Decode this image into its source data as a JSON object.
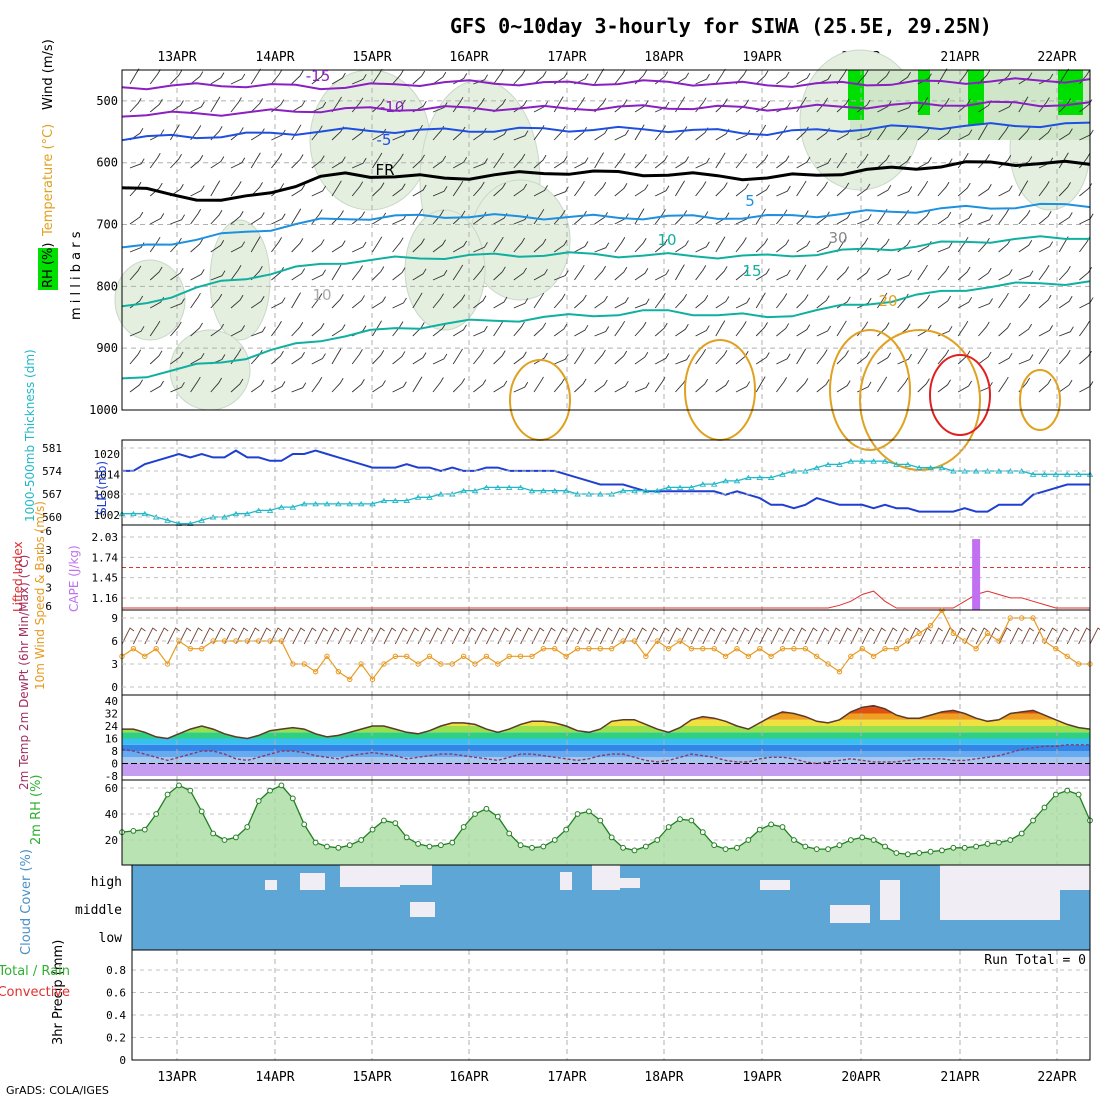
{
  "title": "GFS 0~10day 3-hourly for SIWA (25.5E, 29.25N)",
  "footer": "GrADS: COLA/IGES",
  "colors": {
    "purple": "#8a1fc2",
    "blue": "#1f4fe0",
    "sky": "#1e90e0",
    "teal": "#10b0a0",
    "orange": "#e0a020",
    "red": "#e02020",
    "slp": "#1f3fd0",
    "thick": "#20b8c8",
    "li": "#e03030",
    "cape": "#c070f0",
    "wind": "#e89a20",
    "cloud": "#5ea6d6",
    "rh": "#30b030",
    "green": "#00e000"
  },
  "chart_data": [
    {
      "id": "upper",
      "type": "heatmap",
      "panel_label": "m i l l i b a r s",
      "ylabel_parts": [
        "RH (%)",
        "Temperature (°C)",
        "Wind (m/s)"
      ],
      "yticks": [
        500,
        600,
        700,
        800,
        900,
        1000
      ],
      "dates": [
        "13APR",
        "14APR",
        "15APR",
        "16APR",
        "17APR",
        "18APR",
        "19APR",
        "20APR",
        "21APR",
        "22APR"
      ],
      "isotherm_labels": [
        "-15",
        "-10",
        "-5",
        "FR",
        "5",
        "10",
        "15",
        "20",
        "10",
        "30"
      ],
      "isotherms": [
        {
          "label": "-15",
          "color": "purple",
          "levels": [
            478,
            474,
            478,
            470,
            472,
            470,
            474,
            472,
            468,
            466
          ]
        },
        {
          "label": "-10",
          "color": "purple",
          "levels": [
            522,
            520,
            514,
            512,
            512,
            510,
            512,
            508,
            504,
            506
          ]
        },
        {
          "label": "-5",
          "color": "blue",
          "levels": [
            560,
            556,
            548,
            548,
            546,
            546,
            552,
            544,
            540,
            538
          ]
        },
        {
          "label": "FR",
          "color": "black",
          "levels": [
            640,
            664,
            618,
            625,
            615,
            618,
            625,
            612,
            600,
            602
          ]
        },
        {
          "label": "5",
          "color": "sky",
          "levels": [
            740,
            716,
            690,
            686,
            688,
            688,
            688,
            680,
            672,
            668
          ]
        },
        {
          "label": "10",
          "color": "teal",
          "levels": [
            836,
            790,
            760,
            752,
            748,
            750,
            752,
            740,
            726,
            720
          ]
        },
        {
          "label": "15",
          "color": "teal",
          "levels": [
            950,
            920,
            880,
            860,
            850,
            840,
            850,
            826,
            800,
            792
          ]
        }
      ]
    },
    {
      "id": "slp",
      "type": "line",
      "ylabel": "SLP (mb)",
      "ylabel2": "1000-500mb Thickness (dm)",
      "ticks_left": [
        "581",
        "574",
        "567",
        "560"
      ],
      "ticks_right": [
        "1020",
        "1014",
        "1008",
        "1002"
      ],
      "series": [
        {
          "name": "SLP (mb)",
          "color": "slp",
          "values": [
            1015,
            1015,
            1017,
            1018,
            1019,
            1020,
            1019,
            1020,
            1019,
            1019,
            1021,
            1019,
            1019,
            1018,
            1018,
            1020,
            1020,
            1021,
            1020,
            1019,
            1018,
            1017,
            1016,
            1016,
            1016,
            1017,
            1016,
            1016,
            1015,
            1016,
            1015,
            1015,
            1016,
            1016,
            1015,
            1015,
            1015,
            1015,
            1015,
            1014,
            1013,
            1012,
            1011,
            1011,
            1011,
            1010,
            1009,
            1009,
            1009,
            1009,
            1009,
            1009,
            1009,
            1008,
            1009,
            1008,
            1007,
            1005,
            1005,
            1004,
            1005,
            1007,
            1006,
            1005,
            1005,
            1005,
            1004,
            1005,
            1004,
            1004,
            1003,
            1003,
            1003,
            1003,
            1004,
            1003,
            1003,
            1005,
            1005,
            1005,
            1008,
            1009,
            1010,
            1011,
            1011,
            1011
          ]
        },
        {
          "name": "Thickness (dm)",
          "color": "thick",
          "values": [
            561,
            561,
            561,
            560,
            559,
            558,
            558,
            559,
            560,
            560,
            561,
            561,
            562,
            562,
            563,
            563,
            564,
            564,
            564,
            564,
            564,
            564,
            564,
            565,
            565,
            565,
            566,
            566,
            567,
            567,
            568,
            568,
            569,
            569,
            569,
            569,
            568,
            568,
            568,
            568,
            567,
            567,
            567,
            567,
            568,
            568,
            568,
            568,
            569,
            569,
            569,
            570,
            570,
            571,
            571,
            572,
            572,
            572,
            573,
            574,
            574,
            575,
            576,
            576,
            577,
            577,
            577,
            577,
            576,
            576,
            575,
            575,
            575,
            574,
            574,
            574,
            574,
            574,
            574,
            574,
            573,
            573,
            573,
            573,
            573,
            573
          ]
        }
      ]
    },
    {
      "id": "cape",
      "type": "bar",
      "ylabel": "CAPE (J/kg)",
      "ylabel2": "Lifted Index",
      "ticks_left": [
        "-6",
        "-3",
        "0",
        "3",
        "6"
      ],
      "ticks_right": [
        "2.03",
        "1.74",
        "1.45",
        "1.16"
      ],
      "cape_bar_at_index": 75,
      "cape_bar_value": 2.0,
      "lifted_index": [
        6,
        6,
        6,
        6,
        6,
        6,
        6,
        6,
        6,
        6,
        6,
        6,
        6,
        6,
        6,
        6,
        6,
        6,
        6,
        6,
        6,
        6,
        6,
        6,
        6,
        6,
        6,
        6,
        6,
        6,
        6,
        6,
        6,
        6,
        6,
        6,
        6,
        6,
        6,
        6,
        6,
        6,
        6,
        6,
        6,
        6,
        6,
        6,
        6,
        6,
        6,
        6,
        6,
        6,
        6,
        6,
        6,
        6,
        6,
        6,
        6,
        6,
        6,
        5.6,
        5,
        4,
        3.5,
        5,
        6,
        6,
        6,
        6,
        6,
        6,
        5,
        4,
        3.5,
        4,
        4.5,
        4.5,
        5,
        5.5,
        6,
        6,
        6,
        6
      ]
    },
    {
      "id": "wind10",
      "type": "line",
      "ylabel": "10m Wind Speed & Barbs (m/s)",
      "ticks": [
        "9",
        "6",
        "3",
        "0"
      ],
      "series": [
        {
          "name": "10m Wind Speed",
          "color": "wind",
          "values": [
            4,
            5,
            4,
            5,
            3,
            6,
            5,
            5,
            6,
            6,
            6,
            6,
            6,
            6,
            6,
            3,
            3,
            2,
            4,
            2,
            1,
            3,
            1,
            3,
            4,
            4,
            3,
            4,
            3,
            3,
            4,
            3,
            4,
            3,
            4,
            4,
            4,
            5,
            5,
            4,
            5,
            5,
            5,
            5,
            6,
            6,
            4,
            6,
            5,
            6,
            5,
            5,
            5,
            4,
            5,
            4,
            5,
            4,
            5,
            5,
            5,
            4,
            3,
            2,
            4,
            5,
            4,
            5,
            5,
            6,
            7,
            8,
            10,
            7,
            6,
            5,
            7,
            6,
            9,
            9,
            9,
            6,
            5,
            4,
            3,
            3
          ]
        }
      ]
    },
    {
      "id": "temp2m",
      "type": "area",
      "ylabel": "2m Temp 2m DewPt (6hr Min/Max) (°C)",
      "ticks": [
        "40",
        "32",
        "24",
        "16",
        "8",
        "0",
        "-8"
      ],
      "series": [
        {
          "name": "2m Temp",
          "color": "orange",
          "values": [
            22,
            22,
            20,
            17,
            16,
            19,
            22,
            24,
            22,
            19,
            17,
            16,
            18,
            21,
            22,
            23,
            22,
            19,
            17,
            18,
            20,
            22,
            24,
            24,
            22,
            20,
            19,
            21,
            24,
            26,
            26,
            25,
            22,
            20,
            22,
            25,
            27,
            27,
            26,
            24,
            21,
            20,
            22,
            27,
            28,
            28,
            25,
            22,
            20,
            23,
            28,
            30,
            29,
            27,
            24,
            22,
            26,
            30,
            33,
            32,
            30,
            27,
            26,
            28,
            33,
            36,
            37,
            35,
            31,
            29,
            29,
            31,
            33,
            34,
            32,
            29,
            27,
            28,
            32,
            33,
            34,
            31,
            28,
            25,
            23,
            22
          ]
        },
        {
          "name": "2m DewPt",
          "color": "purple",
          "values": [
            9,
            8,
            6,
            4,
            2,
            4,
            6,
            8,
            8,
            6,
            3,
            2,
            4,
            6,
            8,
            8,
            7,
            5,
            4,
            3,
            5,
            6,
            7,
            6,
            5,
            3,
            4,
            5,
            6,
            6,
            5,
            4,
            3,
            2,
            4,
            6,
            6,
            5,
            4,
            3,
            2,
            3,
            5,
            6,
            6,
            4,
            2,
            1,
            2,
            4,
            6,
            5,
            4,
            2,
            1,
            1,
            3,
            4,
            4,
            3,
            1,
            0,
            1,
            2,
            3,
            2,
            1,
            1,
            1,
            2,
            3,
            3,
            3,
            2,
            2,
            3,
            4,
            5,
            7,
            9,
            10,
            11,
            11,
            12,
            12,
            12
          ]
        }
      ]
    },
    {
      "id": "rh2m",
      "type": "area",
      "ylabel": "2m RH (%)",
      "ticks": [
        "60",
        "40",
        "20"
      ],
      "series": [
        {
          "name": "2m RH",
          "color": "rh",
          "values": [
            26,
            27,
            28,
            40,
            55,
            62,
            58,
            42,
            25,
            20,
            22,
            30,
            50,
            58,
            62,
            52,
            32,
            18,
            15,
            14,
            16,
            20,
            28,
            35,
            33,
            22,
            17,
            15,
            16,
            18,
            30,
            40,
            44,
            38,
            25,
            16,
            14,
            15,
            20,
            28,
            40,
            42,
            35,
            22,
            14,
            12,
            15,
            20,
            30,
            36,
            35,
            26,
            16,
            13,
            14,
            20,
            28,
            32,
            30,
            20,
            15,
            13,
            13,
            16,
            20,
            22,
            20,
            15,
            10,
            9,
            10,
            11,
            12,
            14,
            14,
            15,
            17,
            18,
            20,
            25,
            35,
            45,
            55,
            58,
            55,
            35
          ]
        }
      ]
    },
    {
      "id": "cloud",
      "type": "heatmap",
      "ylabel": "Cloud Cover (%)",
      "rows": [
        "high",
        "middle",
        "low"
      ]
    },
    {
      "id": "precip",
      "type": "bar",
      "ylabel": "3hr Precip (mm)",
      "ylabel2_parts": [
        "Total / Rain",
        "Convective"
      ],
      "ticks": [
        "0.8",
        "0.6",
        "0.4",
        "0.2",
        "0"
      ],
      "run_total_label": "Run Total = 0",
      "values": []
    }
  ]
}
